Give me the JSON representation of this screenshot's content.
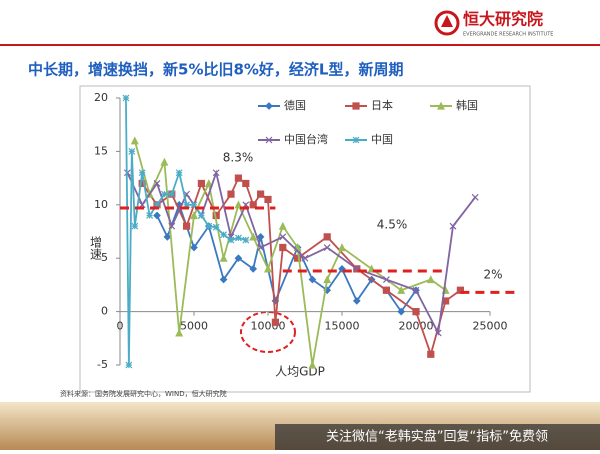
{
  "header": {
    "logo_text": "恒大研究院",
    "logo_subtitle": "EVERGRANDE RESEARCH INSTITUTE"
  },
  "title": "中长期，增速换挡，新5%比旧8%好，经济L型，新周期",
  "chart_data": {
    "type": "line",
    "y_label": "增速",
    "x_label": "人均GDP",
    "xlim": [
      0,
      25000
    ],
    "xticks": [
      0,
      5000,
      10000,
      15000,
      20000,
      25000
    ],
    "ylim": [
      -5,
      20
    ],
    "yticks": [
      -5,
      0,
      5,
      10,
      15,
      20
    ],
    "series": [
      {
        "name": "德国",
        "color": "#3b78c2",
        "marker": "diamond",
        "x": [
          2500,
          3200,
          4000,
          5000,
          6000,
          7000,
          8000,
          9000,
          9500,
          10500,
          12000,
          13000,
          14000,
          15000,
          16000,
          17000,
          18000,
          19000,
          20000
        ],
        "values": [
          9,
          7,
          10,
          6,
          8,
          3,
          5,
          4,
          7,
          1,
          6,
          3,
          2,
          4,
          1,
          3,
          2,
          0,
          2
        ]
      },
      {
        "name": "日本",
        "color": "#c0504d",
        "marker": "square",
        "x": [
          1500,
          2500,
          3500,
          4500,
          5500,
          6500,
          7500,
          8000,
          8500,
          9000,
          9500,
          10000,
          10500,
          11000,
          12000,
          14000,
          16000,
          18000,
          20000,
          21000,
          22000,
          23000
        ],
        "values": [
          12,
          10,
          11,
          8,
          12,
          9,
          11,
          12.5,
          12,
          10,
          11,
          10.5,
          -1,
          6,
          5,
          7,
          4,
          2,
          0,
          -4,
          1,
          2
        ]
      },
      {
        "name": "韩国",
        "color": "#9bbb59",
        "marker": "triangle",
        "x": [
          1000,
          2000,
          3000,
          4000,
          5000,
          6000,
          7000,
          8000,
          9000,
          10000,
          11000,
          12000,
          13000,
          14000,
          15000,
          17000,
          19000,
          21000,
          22000
        ],
        "values": [
          16,
          11,
          14,
          -2,
          9,
          12,
          5,
          10,
          7,
          4,
          8,
          6,
          -5,
          3,
          6,
          4,
          2,
          3,
          2
        ]
      },
      {
        "name": "中国台湾",
        "color": "#8064a2",
        "marker": "x",
        "x": [
          500,
          1500,
          2500,
          3500,
          4500,
          5500,
          6500,
          7500,
          8500,
          9500,
          11000,
          12500,
          14000,
          16000,
          18000,
          20000,
          21500,
          22500,
          24000
        ],
        "values": [
          13,
          10,
          12,
          8,
          11,
          9,
          13,
          7,
          10,
          6,
          7,
          5,
          6,
          4,
          3,
          2,
          -2,
          8,
          10.7
        ]
      },
      {
        "name": "中国",
        "color": "#4bacc6",
        "marker": "star",
        "x": [
          400,
          600,
          800,
          1000,
          1500,
          2000,
          2500,
          3000,
          3500,
          4000,
          4500,
          5000,
          5500,
          6000,
          6500,
          7000,
          7500,
          8000,
          8500
        ],
        "values": [
          20,
          -5,
          15,
          8,
          13,
          9,
          10,
          11,
          11,
          13,
          10,
          10,
          9,
          8,
          7.9,
          7.2,
          6.7,
          6.9,
          6.7
        ]
      }
    ],
    "reference_lines": [
      {
        "x": [
          0,
          10500
        ],
        "y": 9.7
      },
      {
        "x": [
          11000,
          22000
        ],
        "y": 3.8
      },
      {
        "x": [
          23000,
          25000
        ],
        "y": 1.8
      }
    ],
    "reference_color": "#e02020",
    "annotations": [
      "8.3%",
      "4.5%",
      "2%"
    ]
  },
  "source": "资料来源：国务院发展研究中心，WIND，恒大研究院",
  "banner": "关注微信“老韩实盘”回复“指标”免费领"
}
